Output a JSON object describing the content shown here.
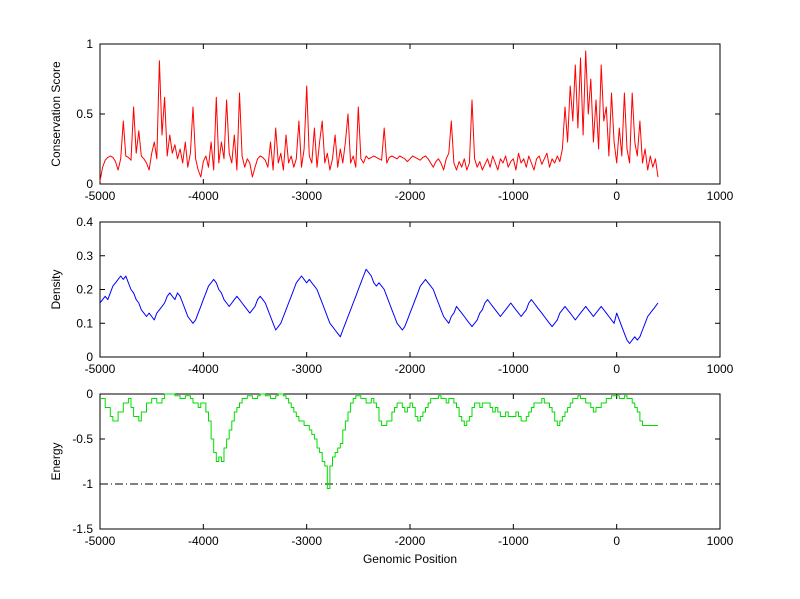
{
  "figure": {
    "background": "#ffffff",
    "xlabel": "Genomic Position",
    "xlim": [
      -5000,
      1000
    ],
    "xticks": [
      -5000,
      -4000,
      -3000,
      -2000,
      -1000,
      0,
      1000
    ],
    "xticklabels": [
      "-5000",
      "-4000",
      "-3000",
      "-2000",
      "-1000",
      "0",
      "1000"
    ]
  },
  "chart_data": [
    {
      "type": "line",
      "name": "Conservation Score",
      "ylabel": "Conservation Score",
      "color": "#ff0000",
      "ylim": [
        0,
        1
      ],
      "yticks": [
        0,
        0.5,
        1
      ],
      "yticklabels": [
        "0",
        "0.5",
        "1"
      ],
      "x_start": -5000,
      "x_step": 25,
      "values": [
        0.02,
        0.12,
        0.17,
        0.19,
        0.2,
        0.19,
        0.16,
        0.1,
        0.18,
        0.45,
        0.2,
        0.19,
        0.17,
        0.55,
        0.22,
        0.38,
        0.2,
        0.18,
        0.15,
        0.1,
        0.22,
        0.3,
        0.18,
        0.88,
        0.35,
        0.62,
        0.2,
        0.35,
        0.22,
        0.28,
        0.18,
        0.25,
        0.15,
        0.3,
        0.12,
        0.22,
        0.55,
        0.18,
        0.1,
        0.05,
        0.16,
        0.2,
        0.12,
        0.3,
        0.1,
        0.62,
        0.15,
        0.3,
        0.18,
        0.6,
        0.22,
        0.15,
        0.35,
        0.1,
        0.65,
        0.2,
        0.12,
        0.18,
        0.15,
        0.05,
        0.12,
        0.18,
        0.2,
        0.19,
        0.17,
        0.12,
        0.3,
        0.1,
        0.4,
        0.15,
        0.22,
        0.1,
        0.35,
        0.15,
        0.2,
        0.12,
        0.18,
        0.45,
        0.12,
        0.25,
        0.7,
        0.2,
        0.15,
        0.4,
        0.12,
        0.3,
        0.45,
        0.15,
        0.22,
        0.1,
        0.18,
        0.35,
        0.12,
        0.25,
        0.15,
        0.3,
        0.5,
        0.15,
        0.2,
        0.12,
        0.55,
        0.18,
        0.15,
        0.2,
        0.18,
        0.19,
        0.2,
        0.19,
        0.18,
        0.17,
        0.4,
        0.15,
        0.19,
        0.2,
        0.19,
        0.18,
        0.2,
        0.19,
        0.18,
        0.16,
        0.18,
        0.2,
        0.19,
        0.18,
        0.17,
        0.19,
        0.2,
        0.18,
        0.15,
        0.12,
        0.16,
        0.18,
        0.15,
        0.1,
        0.18,
        0.22,
        0.45,
        0.15,
        0.1,
        0.16,
        0.12,
        0.18,
        0.1,
        0.15,
        0.6,
        0.18,
        0.12,
        0.16,
        0.1,
        0.14,
        0.18,
        0.12,
        0.2,
        0.15,
        0.1,
        0.18,
        0.15,
        0.2,
        0.12,
        0.16,
        0.18,
        0.1,
        0.22,
        0.15,
        0.18,
        0.12,
        0.2,
        0.15,
        0.1,
        0.18,
        0.2,
        0.14,
        0.18,
        0.22,
        0.12,
        0.18,
        0.15,
        0.2,
        0.16,
        0.25,
        0.55,
        0.3,
        0.7,
        0.45,
        0.85,
        0.4,
        0.9,
        0.35,
        0.95,
        0.5,
        0.75,
        0.3,
        0.6,
        0.25,
        0.85,
        0.45,
        0.55,
        0.2,
        0.65,
        0.3,
        0.15,
        0.4,
        0.2,
        0.65,
        0.25,
        0.15,
        0.65,
        0.3,
        0.2,
        0.45,
        0.15,
        0.25,
        0.1,
        0.2,
        0.12,
        0.18,
        0.05
      ]
    },
    {
      "type": "line",
      "name": "Density",
      "ylabel": "Density",
      "color": "#0000ff",
      "ylim": [
        0,
        0.4
      ],
      "yticks": [
        0,
        0.1,
        0.2,
        0.3,
        0.4
      ],
      "yticklabels": [
        "0",
        "0.1",
        "0.2",
        "0.3",
        "0.4"
      ],
      "x_start": -5000,
      "x_step": 25,
      "values": [
        0.16,
        0.17,
        0.18,
        0.17,
        0.19,
        0.21,
        0.22,
        0.23,
        0.24,
        0.23,
        0.24,
        0.22,
        0.2,
        0.19,
        0.17,
        0.16,
        0.14,
        0.13,
        0.12,
        0.13,
        0.12,
        0.11,
        0.13,
        0.14,
        0.15,
        0.16,
        0.18,
        0.19,
        0.18,
        0.17,
        0.19,
        0.18,
        0.16,
        0.14,
        0.12,
        0.11,
        0.1,
        0.11,
        0.13,
        0.15,
        0.17,
        0.19,
        0.21,
        0.22,
        0.23,
        0.22,
        0.2,
        0.19,
        0.17,
        0.16,
        0.15,
        0.16,
        0.17,
        0.18,
        0.17,
        0.16,
        0.15,
        0.14,
        0.13,
        0.14,
        0.15,
        0.17,
        0.18,
        0.17,
        0.16,
        0.14,
        0.12,
        0.1,
        0.08,
        0.09,
        0.1,
        0.12,
        0.14,
        0.16,
        0.18,
        0.2,
        0.22,
        0.23,
        0.24,
        0.23,
        0.22,
        0.23,
        0.22,
        0.21,
        0.2,
        0.18,
        0.16,
        0.14,
        0.12,
        0.1,
        0.09,
        0.08,
        0.07,
        0.06,
        0.08,
        0.1,
        0.12,
        0.14,
        0.16,
        0.18,
        0.2,
        0.22,
        0.24,
        0.26,
        0.25,
        0.24,
        0.22,
        0.21,
        0.22,
        0.21,
        0.2,
        0.18,
        0.16,
        0.14,
        0.12,
        0.1,
        0.09,
        0.08,
        0.09,
        0.11,
        0.13,
        0.15,
        0.17,
        0.19,
        0.21,
        0.22,
        0.23,
        0.22,
        0.21,
        0.2,
        0.18,
        0.16,
        0.14,
        0.12,
        0.11,
        0.1,
        0.12,
        0.13,
        0.15,
        0.14,
        0.13,
        0.12,
        0.11,
        0.1,
        0.09,
        0.1,
        0.11,
        0.13,
        0.14,
        0.16,
        0.17,
        0.16,
        0.15,
        0.14,
        0.13,
        0.12,
        0.13,
        0.14,
        0.15,
        0.16,
        0.15,
        0.14,
        0.13,
        0.12,
        0.13,
        0.14,
        0.16,
        0.17,
        0.16,
        0.15,
        0.14,
        0.13,
        0.12,
        0.11,
        0.1,
        0.09,
        0.1,
        0.11,
        0.13,
        0.14,
        0.15,
        0.14,
        0.13,
        0.12,
        0.11,
        0.12,
        0.13,
        0.14,
        0.15,
        0.14,
        0.13,
        0.12,
        0.13,
        0.14,
        0.15,
        0.14,
        0.13,
        0.12,
        0.11,
        0.1,
        0.13,
        0.11,
        0.09,
        0.07,
        0.05,
        0.04,
        0.05,
        0.06,
        0.05,
        0.06,
        0.08,
        0.1,
        0.12,
        0.13,
        0.14,
        0.15,
        0.16
      ]
    },
    {
      "type": "line",
      "name": "Energy",
      "ylabel": "Energy",
      "color": "#00dd00",
      "ylim": [
        -1.5,
        0
      ],
      "yticks": [
        -1.5,
        -1,
        -0.5,
        0
      ],
      "yticklabels": [
        "-1.5",
        "-1",
        "-0.5",
        "0"
      ],
      "step": true,
      "ref_line": {
        "y": -1,
        "color": "#000000",
        "style": "dash-dot"
      },
      "x_start": -5000,
      "x_step": 25,
      "values": [
        -0.05,
        -0.05,
        -0.15,
        -0.15,
        -0.25,
        -0.3,
        -0.3,
        -0.2,
        -0.2,
        -0.1,
        -0.1,
        -0.05,
        -0.15,
        -0.25,
        -0.25,
        -0.3,
        -0.2,
        -0.2,
        -0.1,
        -0.1,
        -0.05,
        -0.05,
        -0.1,
        -0.1,
        -0.05,
        0.0,
        0.0,
        0.0,
        0.0,
        -0.02,
        -0.02,
        -0.05,
        -0.05,
        -0.02,
        -0.02,
        -0.05,
        -0.1,
        -0.1,
        -0.15,
        -0.1,
        -0.1,
        -0.2,
        -0.3,
        -0.5,
        -0.65,
        -0.75,
        -0.7,
        -0.75,
        -0.6,
        -0.5,
        -0.4,
        -0.3,
        -0.2,
        -0.15,
        -0.1,
        -0.05,
        -0.05,
        -0.02,
        -0.02,
        -0.05,
        -0.05,
        -0.02,
        0.0,
        0.0,
        -0.02,
        -0.02,
        -0.05,
        -0.05,
        -0.02,
        0.0,
        0.0,
        -0.02,
        -0.05,
        -0.1,
        -0.15,
        -0.2,
        -0.25,
        -0.3,
        -0.3,
        -0.35,
        -0.35,
        -0.4,
        -0.45,
        -0.5,
        -0.6,
        -0.65,
        -0.75,
        -0.8,
        -1.05,
        -0.8,
        -0.7,
        -0.65,
        -0.6,
        -0.55,
        -0.4,
        -0.3,
        -0.2,
        -0.1,
        -0.05,
        -0.02,
        -0.02,
        -0.05,
        -0.05,
        -0.1,
        -0.1,
        -0.05,
        -0.1,
        -0.15,
        -0.3,
        -0.35,
        -0.35,
        -0.3,
        -0.3,
        -0.2,
        -0.15,
        -0.1,
        -0.1,
        -0.15,
        -0.2,
        -0.15,
        -0.1,
        -0.15,
        -0.25,
        -0.3,
        -0.25,
        -0.2,
        -0.15,
        -0.1,
        -0.05,
        -0.05,
        -0.05,
        -0.02,
        -0.05,
        -0.05,
        -0.1,
        -0.05,
        -0.05,
        -0.1,
        -0.15,
        -0.25,
        -0.3,
        -0.35,
        -0.3,
        -0.25,
        -0.15,
        -0.1,
        -0.1,
        -0.15,
        -0.1,
        -0.1,
        -0.1,
        -0.15,
        -0.2,
        -0.15,
        -0.2,
        -0.25,
        -0.25,
        -0.2,
        -0.25,
        -0.25,
        -0.25,
        -0.2,
        -0.25,
        -0.3,
        -0.3,
        -0.25,
        -0.2,
        -0.15,
        -0.1,
        -0.1,
        -0.1,
        -0.05,
        -0.1,
        -0.1,
        -0.15,
        -0.2,
        -0.3,
        -0.35,
        -0.3,
        -0.25,
        -0.2,
        -0.15,
        -0.1,
        -0.05,
        -0.05,
        -0.02,
        -0.05,
        -0.05,
        -0.1,
        -0.1,
        -0.15,
        -0.2,
        -0.15,
        -0.15,
        -0.1,
        -0.1,
        -0.05,
        -0.05,
        -0.02,
        -0.02,
        -0.02,
        -0.05,
        -0.05,
        -0.02,
        -0.05,
        -0.05,
        -0.1,
        -0.15,
        -0.2,
        -0.3,
        -0.35,
        -0.35,
        -0.35,
        -0.35,
        -0.35,
        -0.35,
        -0.35
      ]
    }
  ]
}
